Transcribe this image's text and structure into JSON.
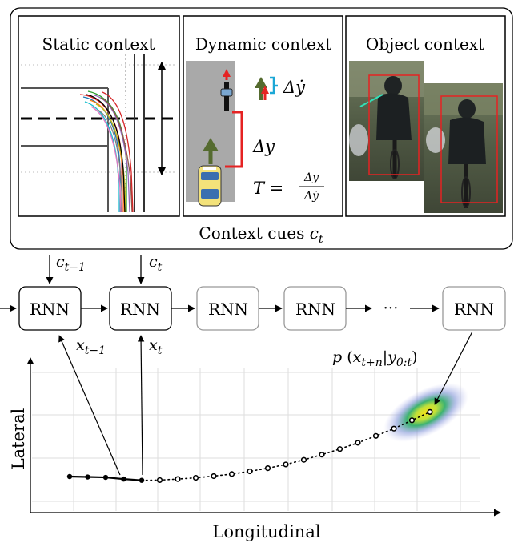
{
  "panels": {
    "static": {
      "title": "Static context"
    },
    "dynamic": {
      "title": "Dynamic context",
      "delta_ydot": "Δẏ",
      "delta_y": "Δy",
      "ttc_lhs": "T =",
      "ttc_num": "Δy",
      "ttc_den": "Δẏ"
    },
    "object": {
      "title": "Object context"
    }
  },
  "context_label": {
    "main": "Context cues ",
    "var": "c",
    "sub": "t"
  },
  "inputs": [
    {
      "var": "c",
      "sub": "t−1"
    },
    {
      "var": "c",
      "sub": "t"
    }
  ],
  "rnn": {
    "labels": [
      "RNN",
      "RNN",
      "RNN",
      "RNN",
      "RNN"
    ],
    "ellipsis": "···"
  },
  "states": [
    {
      "var": "x",
      "sub": "t−1"
    },
    {
      "var": "x",
      "sub": "t"
    }
  ],
  "prediction_label": {
    "p": "p",
    "open": " (",
    "x": "x",
    "xsub": "t+n",
    "bar": "|",
    "y": "y",
    "ysub": "0:t",
    "close": ")"
  },
  "plot": {
    "xlabel": "Longitudinal",
    "ylabel": "Lateral",
    "observed_points": [
      [
        0,
        0.0
      ],
      [
        1,
        -0.02
      ],
      [
        2,
        -0.04
      ],
      [
        3,
        -0.12
      ],
      [
        4,
        -0.18
      ]
    ],
    "predicted_points": [
      [
        5,
        -0.17
      ],
      [
        6,
        -0.12
      ],
      [
        7,
        -0.06
      ],
      [
        8,
        0.02
      ],
      [
        9,
        0.12
      ],
      [
        10,
        0.25
      ],
      [
        11,
        0.4
      ],
      [
        12,
        0.58
      ],
      [
        13,
        0.8
      ],
      [
        14,
        1.05
      ],
      [
        15,
        1.32
      ],
      [
        16,
        1.62
      ],
      [
        17,
        1.95
      ],
      [
        18,
        2.3
      ],
      [
        19,
        2.7
      ],
      [
        20,
        3.1
      ]
    ],
    "colors": {
      "observed": "#000000",
      "predicted": "#000000",
      "gaussian_core": "#f5e11a",
      "gaussian_mid": "#3cb371",
      "gaussian_outer": "#8c8cd8"
    }
  },
  "colors": {
    "red": "#e52222",
    "green": "#556b2f",
    "cyan": "#1ba7d6",
    "gray": "#a9a9a9",
    "box_border": "#555555"
  }
}
